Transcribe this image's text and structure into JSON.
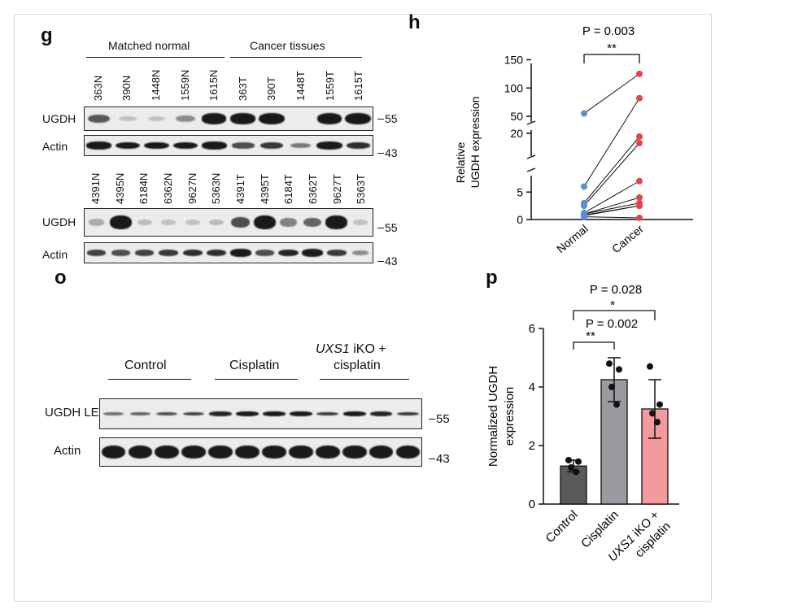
{
  "panels": {
    "g": "g",
    "h": "h",
    "o": "o",
    "p": "p"
  },
  "g": {
    "group_normal": "Matched normal",
    "group_cancer": "Cancer tissues",
    "top_lanes": [
      "363N",
      "390N",
      "1448N",
      "1559N",
      "1615N",
      "363T",
      "390T",
      "1448T",
      "1559T",
      "1615T"
    ],
    "bottom_lanes": [
      "4391N",
      "4395N",
      "6184N",
      "6362N",
      "9627N",
      "5363N",
      "4391T",
      "4395T",
      "6184T",
      "6362T",
      "9627T",
      "5363T"
    ],
    "row_ugdh": "UGDH",
    "row_actin": "Actin",
    "mw_55": "55",
    "mw_43": "43",
    "top_ugdh_intensity": [
      0.55,
      0.05,
      0.05,
      0.3,
      0.85,
      0.9,
      1.0,
      0.0,
      0.9,
      1.0
    ],
    "top_actin_intensity": [
      0.9,
      0.85,
      0.85,
      0.85,
      0.9,
      0.6,
      0.7,
      0.4,
      0.95,
      0.75
    ],
    "bottom_ugdh_intensity": [
      0.15,
      1.0,
      0.08,
      0.05,
      0.05,
      0.08,
      0.6,
      1.0,
      0.35,
      0.5,
      1.0,
      0.05
    ],
    "bottom_actin_intensity": [
      0.65,
      0.6,
      0.65,
      0.7,
      0.75,
      0.75,
      0.9,
      0.6,
      0.8,
      0.95,
      0.7,
      0.3
    ]
  },
  "o": {
    "group_control": "Control",
    "group_cisplatin": "Cisplatin",
    "group_uxs1_italic": "UXS1",
    "group_uxs1_rest": " iKO +",
    "group_uxs1_line2": "cisplatin",
    "row_ugdh": "UGDH LE",
    "row_actin": "Actin",
    "mw_55": "55",
    "mw_43": "43",
    "ugdh_intensity": [
      0.45,
      0.5,
      0.6,
      0.65,
      0.8,
      0.85,
      0.85,
      0.85,
      0.7,
      0.85,
      0.8,
      0.7
    ],
    "actin_intensity": [
      1,
      1,
      1,
      1,
      1,
      1,
      1,
      1,
      1,
      1,
      1,
      1
    ]
  },
  "chart_data": [
    {
      "type": "scatter",
      "panel": "h",
      "title": "P = 0.003",
      "significance": "**",
      "ylabel": "Relative\nUGDH expression",
      "categories": [
        "Normal",
        "Cancer"
      ],
      "broken_axis": true,
      "y_segments": [
        [
          0,
          8
        ],
        [
          13,
          22
        ],
        [
          40,
          155
        ]
      ],
      "y_ticks": [
        0,
        5,
        20,
        50,
        100,
        150
      ],
      "pairs": [
        [
          55,
          125
        ],
        [
          6,
          82
        ],
        [
          3,
          19
        ],
        [
          2.5,
          17
        ],
        [
          1.2,
          7
        ],
        [
          1,
          4
        ],
        [
          1,
          3
        ],
        [
          0.8,
          2.5
        ],
        [
          0.7,
          2.5
        ],
        [
          0.5,
          0.3
        ]
      ],
      "colors": {
        "normal": "#5b8fd1",
        "cancer": "#e0474c"
      }
    },
    {
      "type": "bar",
      "panel": "p",
      "ylabel": "Normalized UGDH\nexpression",
      "categories": [
        "Control",
        "Cisplatin",
        "UXS1 iKO + cisplatin"
      ],
      "values": [
        1.3,
        4.25,
        3.25
      ],
      "errors": [
        0.2,
        0.75,
        1.0
      ],
      "points": [
        [
          1.5,
          1.45,
          1.25,
          1.1
        ],
        [
          4.8,
          4.6,
          4.0,
          3.4
        ],
        [
          4.7,
          3.4,
          3.1,
          2.8
        ]
      ],
      "ylim": [
        0,
        6
      ],
      "y_ticks": [
        0,
        2,
        4,
        6
      ],
      "colors": [
        "#5a5a5a",
        "#9a9aa0",
        "#f29a9e"
      ],
      "annotations": [
        {
          "text": "P = 0.028",
          "stars": "*",
          "between": [
            "Control",
            "UXS1 iKO + cisplatin"
          ]
        },
        {
          "text": "P = 0.002",
          "stars": "**",
          "between": [
            "Control",
            "Cisplatin"
          ]
        }
      ]
    }
  ]
}
